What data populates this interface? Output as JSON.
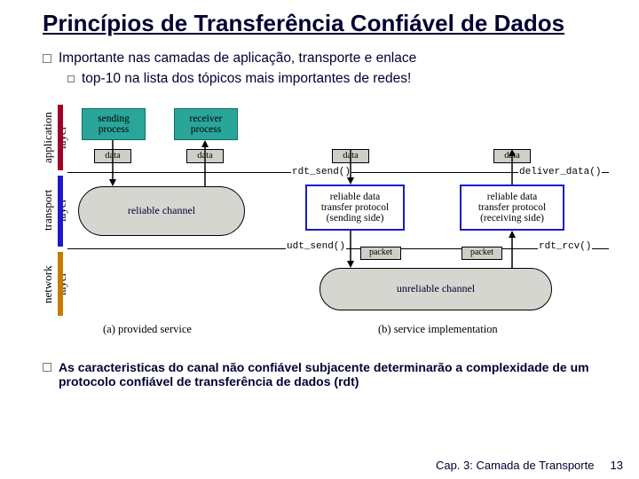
{
  "title": "Princípios de Transferência Confiável de Dados",
  "bullet1": "Importante nas camadas de aplicação, transporte e enlace",
  "bullet2": "top-10 na lista dos tópicos mais importantes de redes!",
  "layers": {
    "app": "application\nlayer",
    "trans": "transport\nlayer",
    "net": "network\nlayer"
  },
  "diagram": {
    "send_proc": "sending\nprocess",
    "recv_proc": "receiver\nprocess",
    "data": "data",
    "packet": "packet",
    "rel_chan": "reliable channel",
    "unrel_chan": "unreliable channel",
    "rdt_send_side": "reliable data\ntransfer protocol\n(sending side)",
    "rdt_recv_side": "reliable data\ntransfer protocol\n(receiving side)",
    "fn_rdt_send": "rdt_send()",
    "fn_deliver": "deliver_data()",
    "fn_udt_send": "udt_send()",
    "fn_rdt_rcv": "rdt_rcv()",
    "cap_a": "(a) provided service",
    "cap_b": "(b) service implementation"
  },
  "conclusion": "As caracteristicas do canal não confiável subjacente determinarão a complexidade de um protocolo confiável de transferência de dados (rdt)",
  "footer_text": "Cap. 3: Camada de Transporte",
  "page_number": "13",
  "colors": {
    "title": "#000033",
    "teal_border": "#0b6e62",
    "app_bar": "#a00028",
    "trans_bar": "#1a1acc",
    "net_bar": "#c97a00"
  }
}
